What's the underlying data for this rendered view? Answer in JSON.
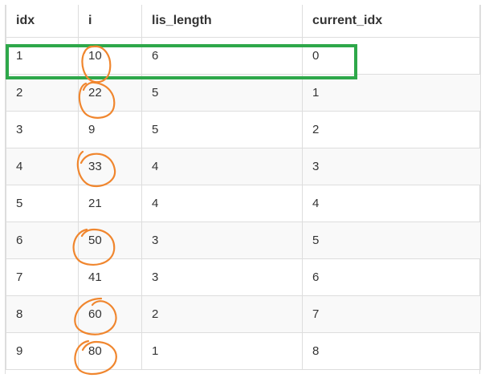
{
  "table": {
    "columns": [
      "idx",
      "i",
      "lis_length",
      "current_idx"
    ],
    "rows": [
      [
        "1",
        "10",
        "6",
        "0"
      ],
      [
        "2",
        "22",
        "5",
        "1"
      ],
      [
        "3",
        "9",
        "5",
        "2"
      ],
      [
        "4",
        "33",
        "4",
        "3"
      ],
      [
        "5",
        "21",
        "4",
        "4"
      ],
      [
        "6",
        "50",
        "3",
        "5"
      ],
      [
        "7",
        "41",
        "3",
        "6"
      ],
      [
        "8",
        "60",
        "2",
        "7"
      ],
      [
        "9",
        "80",
        "1",
        "8"
      ]
    ]
  },
  "annotations": {
    "highlight_box_color": "#2ea84a",
    "circle_color": "#f0862e",
    "highlighted_row": 1,
    "circled_i_rows": [
      1,
      2,
      4,
      6,
      8,
      9
    ]
  }
}
